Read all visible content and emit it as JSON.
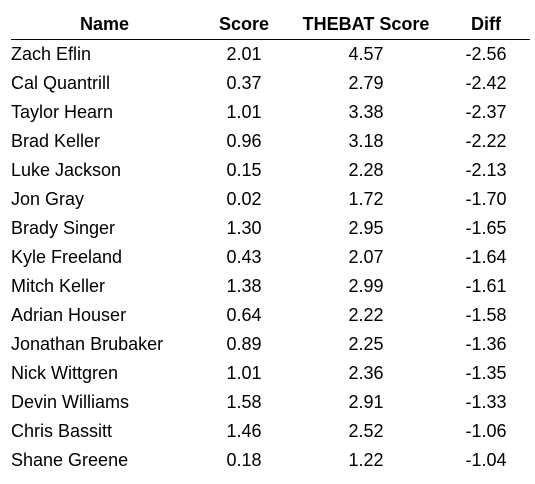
{
  "table": {
    "headers": [
      "Name",
      "Score",
      "THEBAT Score",
      "Diff"
    ],
    "rows": [
      {
        "name": "Zach Eflin",
        "score": "2.01",
        "thebat_score": "4.57",
        "diff": "-2.56"
      },
      {
        "name": "Cal Quantrill",
        "score": "0.37",
        "thebat_score": "2.79",
        "diff": "-2.42"
      },
      {
        "name": "Taylor Hearn",
        "score": "1.01",
        "thebat_score": "3.38",
        "diff": "-2.37"
      },
      {
        "name": "Brad Keller",
        "score": "0.96",
        "thebat_score": "3.18",
        "diff": "-2.22"
      },
      {
        "name": "Luke Jackson",
        "score": "0.15",
        "thebat_score": "2.28",
        "diff": "-2.13"
      },
      {
        "name": "Jon Gray",
        "score": "0.02",
        "thebat_score": "1.72",
        "diff": "-1.70"
      },
      {
        "name": "Brady Singer",
        "score": "1.30",
        "thebat_score": "2.95",
        "diff": "-1.65"
      },
      {
        "name": "Kyle Freeland",
        "score": "0.43",
        "thebat_score": "2.07",
        "diff": "-1.64"
      },
      {
        "name": "Mitch Keller",
        "score": "1.38",
        "thebat_score": "2.99",
        "diff": "-1.61"
      },
      {
        "name": "Adrian Houser",
        "score": "0.64",
        "thebat_score": "2.22",
        "diff": "-1.58"
      },
      {
        "name": "Jonathan Brubaker",
        "score": "0.89",
        "thebat_score": "2.25",
        "diff": "-1.36"
      },
      {
        "name": "Nick Wittgren",
        "score": "1.01",
        "thebat_score": "2.36",
        "diff": "-1.35"
      },
      {
        "name": "Devin Williams",
        "score": "1.58",
        "thebat_score": "2.91",
        "diff": "-1.33"
      },
      {
        "name": "Chris Bassitt",
        "score": "1.46",
        "thebat_score": "2.52",
        "diff": "-1.06"
      },
      {
        "name": "Shane Greene",
        "score": "0.18",
        "thebat_score": "1.22",
        "diff": "-1.04"
      }
    ]
  }
}
